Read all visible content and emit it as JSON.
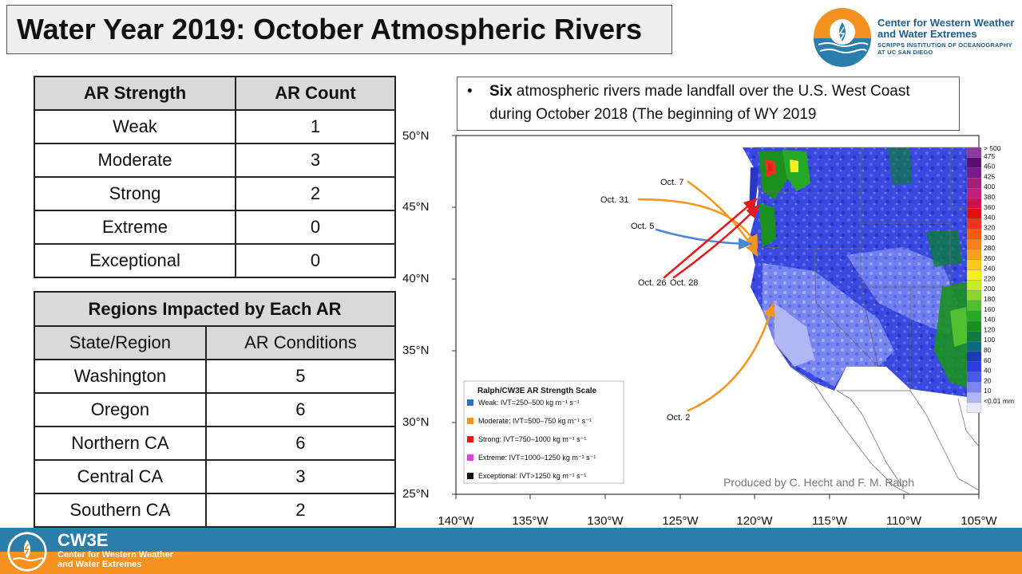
{
  "title": "Water Year 2019: October Atmospheric Rivers",
  "logo": {
    "name_line1": "Center for Western Weather",
    "name_line2": "and Water Extremes",
    "sub_line1": "SCRIPPS INSTITUTION OF OCEANOGRAPHY",
    "sub_line2": "AT UC SAN DIEGO"
  },
  "strength_table": {
    "headers": [
      "AR Strength",
      "AR Count"
    ],
    "rows": [
      {
        "label": "Weak",
        "count": "1"
      },
      {
        "label": "Moderate",
        "count": "3"
      },
      {
        "label": "Strong",
        "count": "2"
      },
      {
        "label": "Extreme",
        "count": "0"
      },
      {
        "label": "Exceptional",
        "count": "0"
      }
    ]
  },
  "regions_table": {
    "title": "Regions Impacted by Each AR",
    "headers": [
      "State/Region",
      "AR Conditions"
    ],
    "rows": [
      {
        "label": "Washington",
        "value": "5"
      },
      {
        "label": "Oregon",
        "value": "6"
      },
      {
        "label": "Northern CA",
        "value": "6"
      },
      {
        "label": "Central CA",
        "value": "3"
      },
      {
        "label": "Southern CA",
        "value": "2"
      }
    ]
  },
  "bullet": {
    "bold": "Six",
    "text": " atmospheric rivers made landfall over the U.S. West Coast during October 2018 (The beginning of WY 2019"
  },
  "map": {
    "lat_labels": [
      "50°N",
      "45°N",
      "40°N",
      "35°N",
      "30°N",
      "25°N"
    ],
    "lon_labels": [
      "140°W",
      "135°W",
      "130°W",
      "125°W",
      "120°W",
      "115°W",
      "110°W",
      "105°W"
    ],
    "ar_labels": [
      {
        "text": "Oct. 7",
        "color": "#f7941d"
      },
      {
        "text": "Oct. 31",
        "color": "#f7941d"
      },
      {
        "text": "Oct. 5",
        "color": "#4a86d6"
      },
      {
        "text": "Oct. 26",
        "color": "#e8181b"
      },
      {
        "text": "Oct. 28",
        "color": "#e8181b"
      },
      {
        "text": "Oct. 2",
        "color": "#f7941d"
      }
    ],
    "legend": {
      "title": "Ralph/CW3E AR Strength Scale",
      "items": [
        {
          "label": "Weak: IVT=250–500 kg m⁻¹ s⁻¹",
          "color": "#2a72c9"
        },
        {
          "label": "Moderate: IVT=500–750 kg m⁻¹ s⁻¹",
          "color": "#f7941d"
        },
        {
          "label": "Strong: IVT=750–1000 kg m⁻¹ s⁻¹",
          "color": "#e8181b"
        },
        {
          "label": "Extreme: IVT=1000–1250 kg m⁻¹ s⁻¹",
          "color": "#e040e0"
        },
        {
          "label": "Exceptional: IVT>1250 kg m⁻¹ s⁻¹",
          "color": "#111111"
        }
      ]
    },
    "credit": "Produced by C. Hecht and F. M. Ralph",
    "colorbar": [
      {
        "label": "> 500",
        "color": "#8b3a9e"
      },
      {
        "label": "475",
        "color": "#5a0f6e"
      },
      {
        "label": "450",
        "color": "#7a1a8a"
      },
      {
        "label": "425",
        "color": "#a0207a"
      },
      {
        "label": "400",
        "color": "#c51b7d"
      },
      {
        "label": "380",
        "color": "#d0104a"
      },
      {
        "label": "360",
        "color": "#e01010"
      },
      {
        "label": "340",
        "color": "#f03020"
      },
      {
        "label": "320",
        "color": "#f55a10"
      },
      {
        "label": "300",
        "color": "#f7801a"
      },
      {
        "label": "280",
        "color": "#f9a020"
      },
      {
        "label": "260",
        "color": "#fbc820"
      },
      {
        "label": "240",
        "color": "#f6f020"
      },
      {
        "label": "220",
        "color": "#c8e830"
      },
      {
        "label": "200",
        "color": "#8cd430"
      },
      {
        "label": "180",
        "color": "#50c030"
      },
      {
        "label": "160",
        "color": "#28a828"
      },
      {
        "label": "140",
        "color": "#1a9020"
      },
      {
        "label": "120",
        "color": "#0e7a40"
      },
      {
        "label": "100",
        "color": "#0a6a80"
      },
      {
        "label": "80",
        "color": "#1a3ab8"
      },
      {
        "label": "60",
        "color": "#2a3ee0"
      },
      {
        "label": "40",
        "color": "#4a5ae8"
      },
      {
        "label": "20",
        "color": "#7a86f0"
      },
      {
        "label": "10",
        "color": "#b0b8f4"
      },
      {
        "label": "<0.01 mm",
        "color": "#e6e8fb"
      }
    ]
  },
  "footer": {
    "name": "CW3E",
    "line1": "Center for Western Weather",
    "line2": "and Water Extremes"
  }
}
